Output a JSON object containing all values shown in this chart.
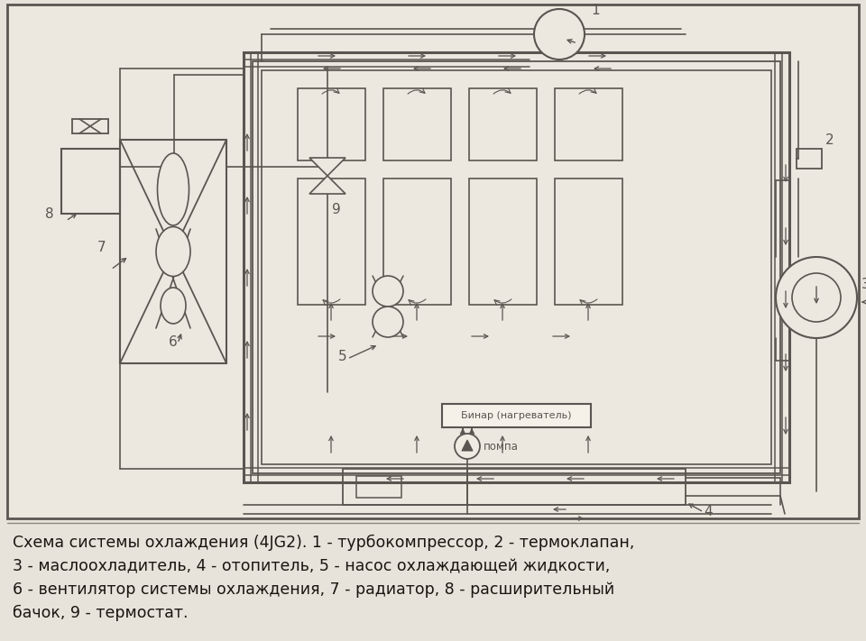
{
  "bg_color": "#e8e3da",
  "paper_color": "#ede8df",
  "line_color": "#5a5550",
  "title_text": "Схема системы охлаждения (4JG2). 1 - турбокомпрессор, 2 - термоклапан,\n3 - маслоохладитель, 4 - отопитель, 5 - насос охлаждающей жидкости,\n6 - вентилятор системы охлаждения, 7 - радиатор, 8 - расширительный\nбачок, 9 - термостат.",
  "caption_fontsize": 12.5
}
